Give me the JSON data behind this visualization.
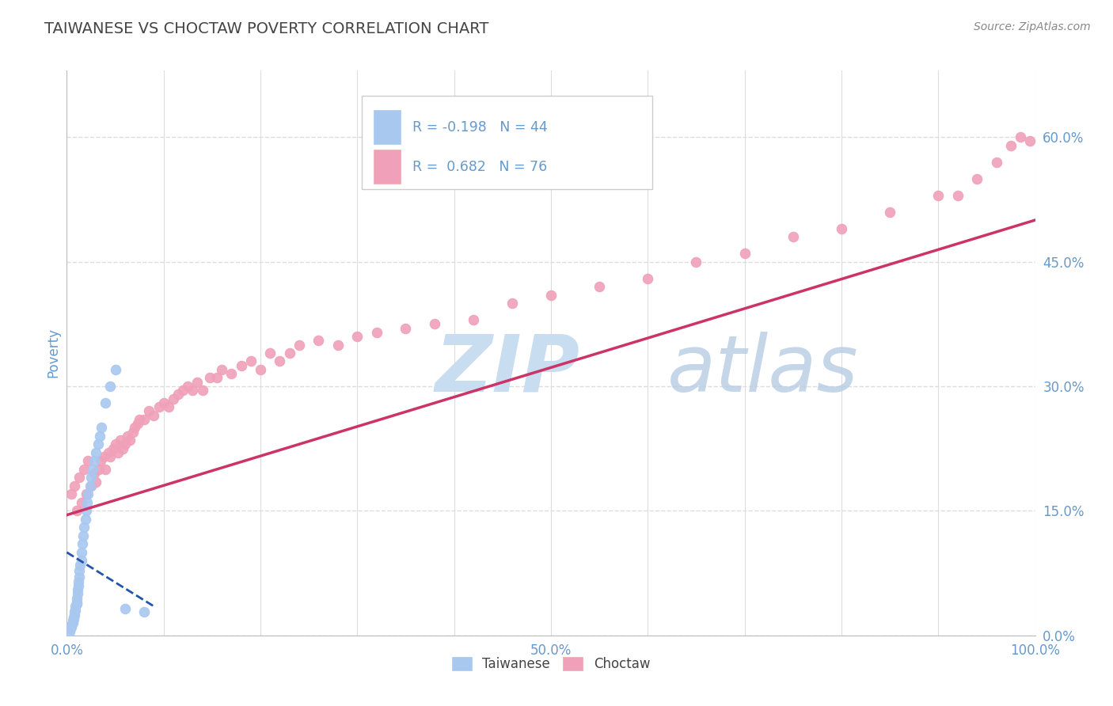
{
  "title": "TAIWANESE VS CHOCTAW POVERTY CORRELATION CHART",
  "source_text": "Source: ZipAtlas.com",
  "ylabel": "Poverty",
  "xlim": [
    0,
    1.0
  ],
  "ylim": [
    0,
    0.68
  ],
  "x_ticks": [
    0.0,
    0.1,
    0.2,
    0.3,
    0.4,
    0.5,
    0.6,
    0.7,
    0.8,
    0.9,
    1.0
  ],
  "x_tick_labels": [
    "0.0%",
    "",
    "",
    "",
    "",
    "50.0%",
    "",
    "",
    "",
    "",
    "100.0%"
  ],
  "y_tick_labels_right": [
    "0.0%",
    "15.0%",
    "30.0%",
    "45.0%",
    "60.0%"
  ],
  "y_tick_vals_right": [
    0.0,
    0.15,
    0.3,
    0.45,
    0.6
  ],
  "taiwanese_color": "#a8c8f0",
  "choctaw_color": "#f0a0b8",
  "taiwanese_line_color": "#2255aa",
  "choctaw_line_color": "#cc3366",
  "title_color": "#444444",
  "axis_label_color": "#6699cc",
  "grid_color": "#dddddd",
  "background_color": "#ffffff",
  "watermark_zip_color": "#c8ddf0",
  "watermark_atlas_color": "#b8cce4",
  "tw_x": [
    0.003,
    0.004,
    0.005,
    0.005,
    0.006,
    0.006,
    0.007,
    0.007,
    0.008,
    0.008,
    0.009,
    0.009,
    0.01,
    0.01,
    0.01,
    0.011,
    0.011,
    0.012,
    0.012,
    0.013,
    0.013,
    0.014,
    0.015,
    0.015,
    0.016,
    0.017,
    0.018,
    0.019,
    0.02,
    0.021,
    0.022,
    0.024,
    0.025,
    0.027,
    0.028,
    0.03,
    0.032,
    0.034,
    0.036,
    0.04,
    0.045,
    0.05,
    0.06,
    0.08
  ],
  "tw_y": [
    0.005,
    0.008,
    0.01,
    0.012,
    0.015,
    0.018,
    0.02,
    0.022,
    0.025,
    0.028,
    0.03,
    0.035,
    0.038,
    0.04,
    0.045,
    0.05,
    0.055,
    0.06,
    0.065,
    0.07,
    0.078,
    0.085,
    0.09,
    0.1,
    0.11,
    0.12,
    0.13,
    0.14,
    0.15,
    0.16,
    0.17,
    0.18,
    0.19,
    0.2,
    0.21,
    0.22,
    0.23,
    0.24,
    0.25,
    0.28,
    0.3,
    0.32,
    0.032,
    0.028
  ],
  "ch_x": [
    0.005,
    0.008,
    0.01,
    0.013,
    0.015,
    0.018,
    0.02,
    0.022,
    0.025,
    0.028,
    0.03,
    0.033,
    0.035,
    0.038,
    0.04,
    0.043,
    0.045,
    0.048,
    0.05,
    0.053,
    0.055,
    0.058,
    0.06,
    0.063,
    0.065,
    0.068,
    0.07,
    0.073,
    0.075,
    0.08,
    0.085,
    0.09,
    0.095,
    0.1,
    0.105,
    0.11,
    0.115,
    0.12,
    0.125,
    0.13,
    0.135,
    0.14,
    0.148,
    0.155,
    0.16,
    0.17,
    0.18,
    0.19,
    0.2,
    0.21,
    0.22,
    0.23,
    0.24,
    0.26,
    0.28,
    0.3,
    0.32,
    0.35,
    0.38,
    0.42,
    0.46,
    0.5,
    0.55,
    0.6,
    0.65,
    0.7,
    0.75,
    0.8,
    0.85,
    0.9,
    0.92,
    0.94,
    0.96,
    0.975,
    0.985,
    0.995
  ],
  "ch_y": [
    0.17,
    0.18,
    0.15,
    0.19,
    0.16,
    0.2,
    0.17,
    0.21,
    0.18,
    0.195,
    0.185,
    0.2,
    0.21,
    0.215,
    0.2,
    0.22,
    0.215,
    0.225,
    0.23,
    0.22,
    0.235,
    0.225,
    0.23,
    0.24,
    0.235,
    0.245,
    0.25,
    0.255,
    0.26,
    0.26,
    0.27,
    0.265,
    0.275,
    0.28,
    0.275,
    0.285,
    0.29,
    0.295,
    0.3,
    0.295,
    0.305,
    0.295,
    0.31,
    0.31,
    0.32,
    0.315,
    0.325,
    0.33,
    0.32,
    0.34,
    0.33,
    0.34,
    0.35,
    0.355,
    0.35,
    0.36,
    0.365,
    0.37,
    0.375,
    0.38,
    0.4,
    0.41,
    0.42,
    0.43,
    0.45,
    0.46,
    0.48,
    0.49,
    0.51,
    0.53,
    0.53,
    0.55,
    0.57,
    0.59,
    0.6,
    0.595
  ],
  "ch_line_x0": 0.0,
  "ch_line_x1": 1.0,
  "ch_line_y0": 0.145,
  "ch_line_y1": 0.5,
  "tw_line_x0": 0.0,
  "tw_line_x1": 0.09,
  "tw_line_y0": 0.1,
  "tw_line_y1": 0.035
}
